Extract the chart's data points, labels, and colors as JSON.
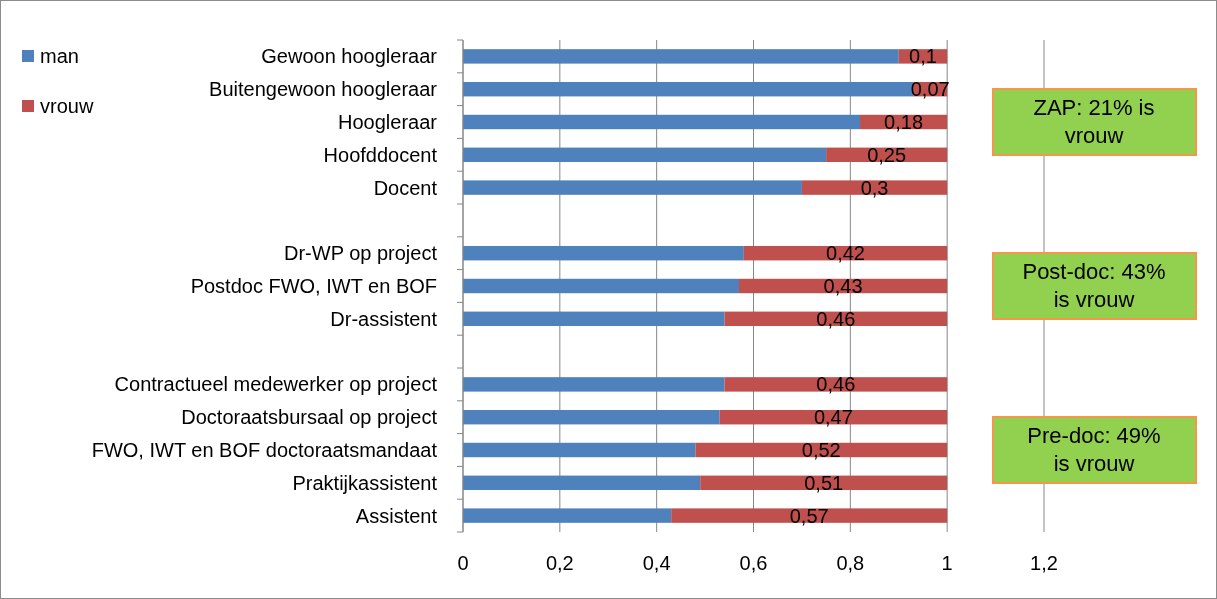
{
  "chart_data": {
    "type": "bar",
    "orientation": "horizontal",
    "stacked": true,
    "categories": [
      "Gewoon hoogleraar",
      "Buitengewoon hoogleraar",
      "Hoogleraar",
      "Hoofddocent",
      "Docent",
      null,
      "Dr-WP op project",
      "Postdoc FWO, IWT en BOF",
      "Dr-assistent",
      null,
      "Contractueel medewerker op project",
      "Doctoraatsbursaal op project",
      "FWO, IWT en BOF doctoraatsmandaat",
      "Praktijkassistent",
      "Assistent"
    ],
    "series": [
      {
        "name": "man",
        "color": "#4f81bd",
        "values": [
          0.9,
          0.93,
          0.82,
          0.75,
          0.7,
          null,
          0.58,
          0.57,
          0.54,
          null,
          0.54,
          0.53,
          0.48,
          0.49,
          0.43
        ]
      },
      {
        "name": "vrouw",
        "color": "#c0504d",
        "values": [
          0.1,
          0.07,
          0.18,
          0.25,
          0.3,
          null,
          0.42,
          0.43,
          0.46,
          null,
          0.46,
          0.47,
          0.52,
          0.51,
          0.57
        ],
        "value_labels": [
          "0,1",
          "0,07",
          "0,18",
          "0,25",
          "0,3",
          null,
          "0,42",
          "0,43",
          "0,46",
          null,
          "0,46",
          "0,47",
          "0,52",
          "0,51",
          "0,57"
        ]
      }
    ],
    "xlim": [
      0,
      1.2
    ],
    "xticks": [
      {
        "value": 0,
        "label": "0"
      },
      {
        "value": 0.2,
        "label": "0,2"
      },
      {
        "value": 0.4,
        "label": "0,4"
      },
      {
        "value": 0.6,
        "label": "0,6"
      },
      {
        "value": 0.8,
        "label": "0,8"
      },
      {
        "value": 1,
        "label": "1"
      },
      {
        "value": 1.2,
        "label": "1,2"
      }
    ],
    "grid": "x",
    "legend": "top left",
    "annotations": [
      "ZAP: 21% is vrouw",
      "Post-doc: 43% is vrouw",
      "Pre-doc: 49% is vrouw"
    ]
  }
}
